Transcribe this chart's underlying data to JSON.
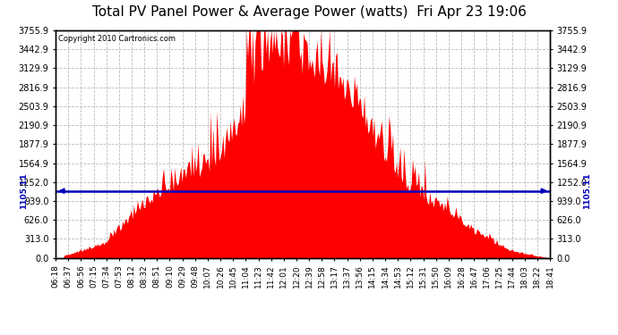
{
  "title": "Total PV Panel Power & Average Power (watts)  Fri Apr 23 19:06",
  "copyright": "Copyright 2010 Cartronics.com",
  "average_power": 1105.11,
  "ymax": 3755.9,
  "yticks": [
    0.0,
    313.0,
    626.0,
    939.0,
    1252.0,
    1564.9,
    1877.9,
    2190.9,
    2503.9,
    2816.9,
    3129.9,
    3442.9,
    3755.9
  ],
  "fill_color": "#FF0000",
  "avg_line_color": "#0000BB",
  "background_color": "#FFFFFF",
  "grid_color": "#BBBBBB",
  "title_fontsize": 11,
  "tick_fontsize": 7,
  "x_tick_labels": [
    "06:18",
    "06:37",
    "06:56",
    "07:15",
    "07:34",
    "07:53",
    "08:12",
    "08:32",
    "08:51",
    "09:10",
    "09:29",
    "09:48",
    "10:07",
    "10:26",
    "10:45",
    "11:04",
    "11:23",
    "11:42",
    "12:01",
    "12:20",
    "12:39",
    "12:58",
    "13:17",
    "13:37",
    "13:56",
    "14:15",
    "14:34",
    "14:53",
    "15:12",
    "15:31",
    "15:50",
    "16:09",
    "16:28",
    "16:47",
    "17:06",
    "17:25",
    "17:44",
    "18:03",
    "18:22",
    "18:41"
  ]
}
